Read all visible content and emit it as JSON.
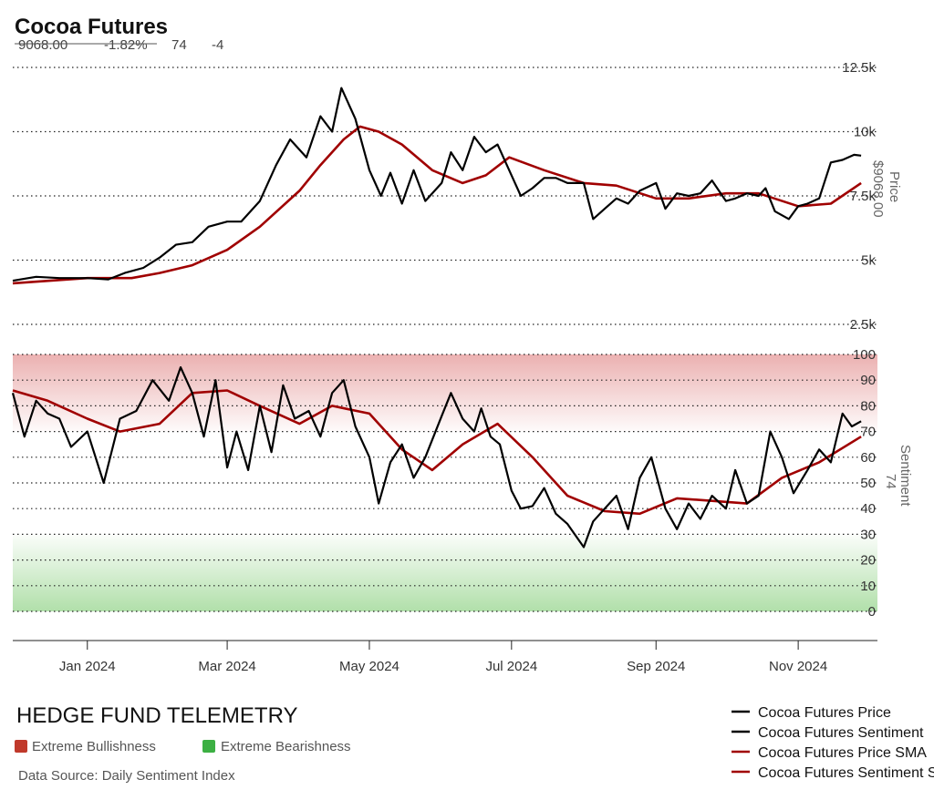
{
  "header": {
    "title": "Cocoa Futures",
    "stats": [
      "9068.00",
      "-1.82%",
      "74",
      "-4"
    ]
  },
  "branding": {
    "name": "HEDGE FUND TELEMETRY",
    "source": "Data Source: Daily Sentiment Index"
  },
  "zones": [
    {
      "label": "Extreme Bullishness",
      "color": "#c0392b"
    },
    {
      "label": "Extreme Bearishness",
      "color": "#3cb043"
    }
  ],
  "legend": [
    {
      "label": "Cocoa Futures Price",
      "color": "#000000"
    },
    {
      "label": "Cocoa Futures Sentiment",
      "color": "#000000"
    },
    {
      "label": "Cocoa Futures Price SMA",
      "color": "#a00000"
    },
    {
      "label": "Cocoa Futures Sentiment SMA",
      "color": "#a00000"
    }
  ],
  "colors": {
    "series": "#000000",
    "sma": "#a00000",
    "bull_zone": "#e9a8a8",
    "bear_zone": "#a8dca0"
  },
  "chart_data": {
    "type": "line",
    "x_ticks": [
      "Jan 2024",
      "Mar 2024",
      "May 2024",
      "Jul 2024",
      "Sep 2024",
      "Nov 2024"
    ],
    "x_tick_dates": [
      "2024-01-01",
      "2024-03-01",
      "2024-05-01",
      "2024-07-01",
      "2024-09-01",
      "2024-11-01"
    ],
    "x_range": [
      "2023-11-30",
      "2024-12-05"
    ],
    "price_panel": {
      "axis_title": "Price",
      "axis_value": "$9068.00",
      "ticks": [
        "2.5k",
        "5k",
        "7.5k",
        "10k",
        "12.5k"
      ],
      "tick_values": [
        2500,
        5000,
        7500,
        10000,
        12500
      ],
      "ylim": [
        2500,
        12500
      ],
      "series": [
        {
          "name": "Cocoa Futures Price",
          "points": [
            [
              "2023-11-30",
              4200
            ],
            [
              "2023-12-10",
              4350
            ],
            [
              "2023-12-20",
              4300
            ],
            [
              "2024-01-01",
              4300
            ],
            [
              "2024-01-10",
              4250
            ],
            [
              "2024-01-17",
              4500
            ],
            [
              "2024-01-25",
              4700
            ],
            [
              "2024-02-01",
              5100
            ],
            [
              "2024-02-08",
              5600
            ],
            [
              "2024-02-15",
              5700
            ],
            [
              "2024-02-22",
              6300
            ],
            [
              "2024-03-01",
              6500
            ],
            [
              "2024-03-07",
              6500
            ],
            [
              "2024-03-15",
              7300
            ],
            [
              "2024-03-22",
              8700
            ],
            [
              "2024-03-28",
              9700
            ],
            [
              "2024-04-04",
              9000
            ],
            [
              "2024-04-10",
              10600
            ],
            [
              "2024-04-15",
              10000
            ],
            [
              "2024-04-19",
              11700
            ],
            [
              "2024-04-25",
              10500
            ],
            [
              "2024-05-01",
              8500
            ],
            [
              "2024-05-06",
              7500
            ],
            [
              "2024-05-10",
              8400
            ],
            [
              "2024-05-15",
              7200
            ],
            [
              "2024-05-20",
              8500
            ],
            [
              "2024-05-25",
              7300
            ],
            [
              "2024-06-01",
              8000
            ],
            [
              "2024-06-05",
              9200
            ],
            [
              "2024-06-10",
              8500
            ],
            [
              "2024-06-15",
              9800
            ],
            [
              "2024-06-20",
              9200
            ],
            [
              "2024-06-25",
              9500
            ],
            [
              "2024-07-01",
              8300
            ],
            [
              "2024-07-05",
              7500
            ],
            [
              "2024-07-10",
              7800
            ],
            [
              "2024-07-15",
              8200
            ],
            [
              "2024-07-20",
              8200
            ],
            [
              "2024-07-25",
              8000
            ],
            [
              "2024-08-01",
              8000
            ],
            [
              "2024-08-05",
              6600
            ],
            [
              "2024-08-10",
              7000
            ],
            [
              "2024-08-15",
              7400
            ],
            [
              "2024-08-20",
              7200
            ],
            [
              "2024-08-25",
              7700
            ],
            [
              "2024-09-01",
              8000
            ],
            [
              "2024-09-05",
              7000
            ],
            [
              "2024-09-10",
              7600
            ],
            [
              "2024-09-15",
              7500
            ],
            [
              "2024-09-20",
              7600
            ],
            [
              "2024-09-25",
              8100
            ],
            [
              "2024-10-01",
              7300
            ],
            [
              "2024-10-05",
              7400
            ],
            [
              "2024-10-10",
              7600
            ],
            [
              "2024-10-15",
              7500
            ],
            [
              "2024-10-18",
              7800
            ],
            [
              "2024-10-22",
              6900
            ],
            [
              "2024-10-28",
              6600
            ],
            [
              "2024-11-01",
              7100
            ],
            [
              "2024-11-05",
              7200
            ],
            [
              "2024-11-10",
              7400
            ],
            [
              "2024-11-15",
              8800
            ],
            [
              "2024-11-20",
              8900
            ],
            [
              "2024-11-25",
              9100
            ],
            [
              "2024-11-28",
              9068
            ]
          ]
        },
        {
          "name": "Cocoa Futures Price SMA",
          "points": [
            [
              "2023-11-30",
              4100
            ],
            [
              "2024-01-01",
              4300
            ],
            [
              "2024-01-20",
              4300
            ],
            [
              "2024-02-01",
              4500
            ],
            [
              "2024-02-15",
              4800
            ],
            [
              "2024-03-01",
              5400
            ],
            [
              "2024-03-15",
              6300
            ],
            [
              "2024-04-01",
              7700
            ],
            [
              "2024-04-10",
              8700
            ],
            [
              "2024-04-20",
              9700
            ],
            [
              "2024-04-27",
              10200
            ],
            [
              "2024-05-05",
              10000
            ],
            [
              "2024-05-15",
              9500
            ],
            [
              "2024-05-28",
              8500
            ],
            [
              "2024-06-10",
              8000
            ],
            [
              "2024-06-20",
              8300
            ],
            [
              "2024-06-30",
              9000
            ],
            [
              "2024-07-15",
              8500
            ],
            [
              "2024-08-01",
              8000
            ],
            [
              "2024-08-15",
              7900
            ],
            [
              "2024-09-01",
              7400
            ],
            [
              "2024-09-15",
              7400
            ],
            [
              "2024-10-01",
              7600
            ],
            [
              "2024-10-15",
              7600
            ],
            [
              "2024-11-01",
              7100
            ],
            [
              "2024-11-15",
              7200
            ],
            [
              "2024-11-28",
              8000
            ]
          ]
        }
      ]
    },
    "sentiment_panel": {
      "axis_title": "Sentiment",
      "axis_value": "74",
      "ticks": [
        "0",
        "10",
        "20",
        "30",
        "40",
        "50",
        "60",
        "70",
        "80",
        "90",
        "100"
      ],
      "tick_values": [
        0,
        10,
        20,
        30,
        40,
        50,
        60,
        70,
        80,
        90,
        100
      ],
      "ylim": [
        0,
        100
      ],
      "bull_zone": [
        70,
        100
      ],
      "bear_zone": [
        0,
        30
      ],
      "series": [
        {
          "name": "Cocoa Futures Sentiment",
          "points": [
            [
              "2023-11-30",
              85
            ],
            [
              "2023-12-05",
              68
            ],
            [
              "2023-12-10",
              82
            ],
            [
              "2023-12-15",
              77
            ],
            [
              "2023-12-20",
              75
            ],
            [
              "2023-12-25",
              64
            ],
            [
              "2024-01-01",
              70
            ],
            [
              "2024-01-08",
              50
            ],
            [
              "2024-01-15",
              75
            ],
            [
              "2024-01-22",
              78
            ],
            [
              "2024-01-29",
              90
            ],
            [
              "2024-02-05",
              82
            ],
            [
              "2024-02-10",
              95
            ],
            [
              "2024-02-15",
              85
            ],
            [
              "2024-02-20",
              68
            ],
            [
              "2024-02-25",
              90
            ],
            [
              "2024-03-01",
              56
            ],
            [
              "2024-03-05",
              70
            ],
            [
              "2024-03-10",
              55
            ],
            [
              "2024-03-15",
              80
            ],
            [
              "2024-03-20",
              62
            ],
            [
              "2024-03-25",
              88
            ],
            [
              "2024-03-30",
              75
            ],
            [
              "2024-04-05",
              78
            ],
            [
              "2024-04-10",
              68
            ],
            [
              "2024-04-15",
              85
            ],
            [
              "2024-04-20",
              90
            ],
            [
              "2024-04-25",
              72
            ],
            [
              "2024-05-01",
              60
            ],
            [
              "2024-05-05",
              42
            ],
            [
              "2024-05-10",
              58
            ],
            [
              "2024-05-15",
              65
            ],
            [
              "2024-05-20",
              52
            ],
            [
              "2024-05-25",
              60
            ],
            [
              "2024-06-01",
              76
            ],
            [
              "2024-06-05",
              85
            ],
            [
              "2024-06-10",
              75
            ],
            [
              "2024-06-15",
              70
            ],
            [
              "2024-06-18",
              79
            ],
            [
              "2024-06-22",
              68
            ],
            [
              "2024-06-26",
              65
            ],
            [
              "2024-07-01",
              47
            ],
            [
              "2024-07-05",
              40
            ],
            [
              "2024-07-10",
              41
            ],
            [
              "2024-07-15",
              48
            ],
            [
              "2024-07-20",
              38
            ],
            [
              "2024-07-25",
              34
            ],
            [
              "2024-08-01",
              25
            ],
            [
              "2024-08-05",
              35
            ],
            [
              "2024-08-10",
              40
            ],
            [
              "2024-08-15",
              45
            ],
            [
              "2024-08-20",
              32
            ],
            [
              "2024-08-25",
              52
            ],
            [
              "2024-08-30",
              60
            ],
            [
              "2024-09-05",
              40
            ],
            [
              "2024-09-10",
              32
            ],
            [
              "2024-09-15",
              42
            ],
            [
              "2024-09-20",
              36
            ],
            [
              "2024-09-25",
              45
            ],
            [
              "2024-10-01",
              40
            ],
            [
              "2024-10-05",
              55
            ],
            [
              "2024-10-10",
              42
            ],
            [
              "2024-10-15",
              45
            ],
            [
              "2024-10-20",
              70
            ],
            [
              "2024-10-25",
              60
            ],
            [
              "2024-10-30",
              46
            ],
            [
              "2024-11-05",
              55
            ],
            [
              "2024-11-10",
              63
            ],
            [
              "2024-11-15",
              58
            ],
            [
              "2024-11-20",
              77
            ],
            [
              "2024-11-24",
              72
            ],
            [
              "2024-11-28",
              74
            ]
          ]
        },
        {
          "name": "Cocoa Futures Sentiment SMA",
          "points": [
            [
              "2023-11-30",
              86
            ],
            [
              "2023-12-15",
              82
            ],
            [
              "2024-01-01",
              75
            ],
            [
              "2024-01-15",
              70
            ],
            [
              "2024-02-01",
              73
            ],
            [
              "2024-02-15",
              85
            ],
            [
              "2024-03-01",
              86
            ],
            [
              "2024-03-15",
              80
            ],
            [
              "2024-04-01",
              73
            ],
            [
              "2024-04-15",
              80
            ],
            [
              "2024-05-01",
              77
            ],
            [
              "2024-05-15",
              63
            ],
            [
              "2024-05-28",
              55
            ],
            [
              "2024-06-10",
              65
            ],
            [
              "2024-06-25",
              73
            ],
            [
              "2024-07-10",
              60
            ],
            [
              "2024-07-25",
              45
            ],
            [
              "2024-08-10",
              39
            ],
            [
              "2024-08-25",
              38
            ],
            [
              "2024-09-10",
              44
            ],
            [
              "2024-09-25",
              43
            ],
            [
              "2024-10-10",
              42
            ],
            [
              "2024-10-25",
              52
            ],
            [
              "2024-11-10",
              58
            ],
            [
              "2024-11-28",
              68
            ]
          ]
        }
      ]
    }
  }
}
